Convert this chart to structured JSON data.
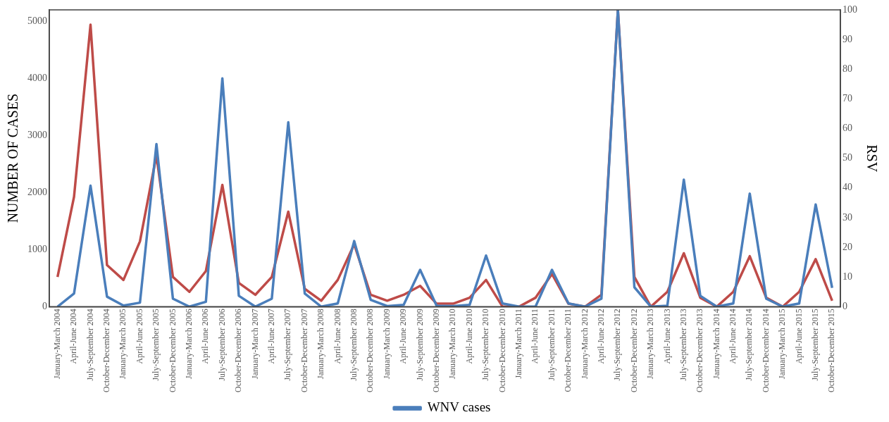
{
  "chart_data": {
    "type": "line",
    "ylabel": "NUMBER OF CASES",
    "y2label": "RSV",
    "categories": [
      "January-March 2004",
      "April-June 2004",
      "July-September 2004",
      "October-December 2004",
      "January-March 2005",
      "April-June 2005",
      "July-September 2005",
      "October-December 2005",
      "January-March 2006",
      "April-June 2006",
      "July-September 2006",
      "October-December 2006",
      "January-March 2007",
      "April-June 2007",
      "July-September 2007",
      "October-December 2007",
      "January-March 2008",
      "April-June 2008",
      "July-September 2008",
      "October-December 2008",
      "January-March 2009",
      "April-June 2009",
      "July-September 2009",
      "October-December 2009",
      "January-March 2010",
      "April-June 2010",
      "July-September 2010",
      "October-December 2010",
      "January-March 2011",
      "April-June 2011",
      "July-September 2011",
      "October-December 2011",
      "January-March 2012",
      "April-June 2012",
      "July-September 2012",
      "October-December 2012",
      "January-March 2013",
      "April-June 2013",
      "July-September 2013",
      "October-December 2013",
      "January-March 2014",
      "April-June 2014",
      "July-September 2014",
      "October-December 2014",
      "January-March 2015",
      "April-June 2015",
      "July-September 2015",
      "October-December 2015"
    ],
    "series": [
      {
        "name": "WNV cases",
        "color": "#4a7ebb",
        "values": [
          0,
          230,
          2120,
          175,
          20,
          70,
          2850,
          140,
          0,
          85,
          4000,
          190,
          0,
          140,
          3230,
          230,
          0,
          55,
          1150,
          120,
          10,
          30,
          645,
          15,
          10,
          30,
          895,
          55,
          0,
          0,
          645,
          55,
          0,
          140,
          5200,
          340,
          0,
          15,
          2225,
          190,
          0,
          55,
          1980,
          140,
          0,
          55,
          1790,
          330
        ]
      },
      {
        "color": "#be4b48",
        "axis": "y2",
        "values": [
          10,
          37,
          95,
          14,
          9,
          22,
          51,
          10,
          5,
          12,
          41,
          8,
          4,
          10,
          32,
          6,
          2,
          9,
          21,
          4,
          2,
          4,
          7,
          1,
          1,
          3,
          9,
          0,
          0,
          3,
          11,
          1,
          0,
          4,
          100,
          10,
          0,
          5,
          18,
          3,
          0,
          5,
          17,
          3,
          0,
          5,
          16,
          2
        ]
      }
    ],
    "ylim": [
      0,
      5200
    ],
    "yticks": [
      0,
      1000,
      2000,
      3000,
      4000,
      5000
    ],
    "y2lim": [
      0,
      100
    ],
    "y2ticks": [
      0,
      10,
      20,
      30,
      40,
      50,
      60,
      70,
      80,
      90,
      100
    ],
    "grid": false,
    "legend": "bottom"
  }
}
